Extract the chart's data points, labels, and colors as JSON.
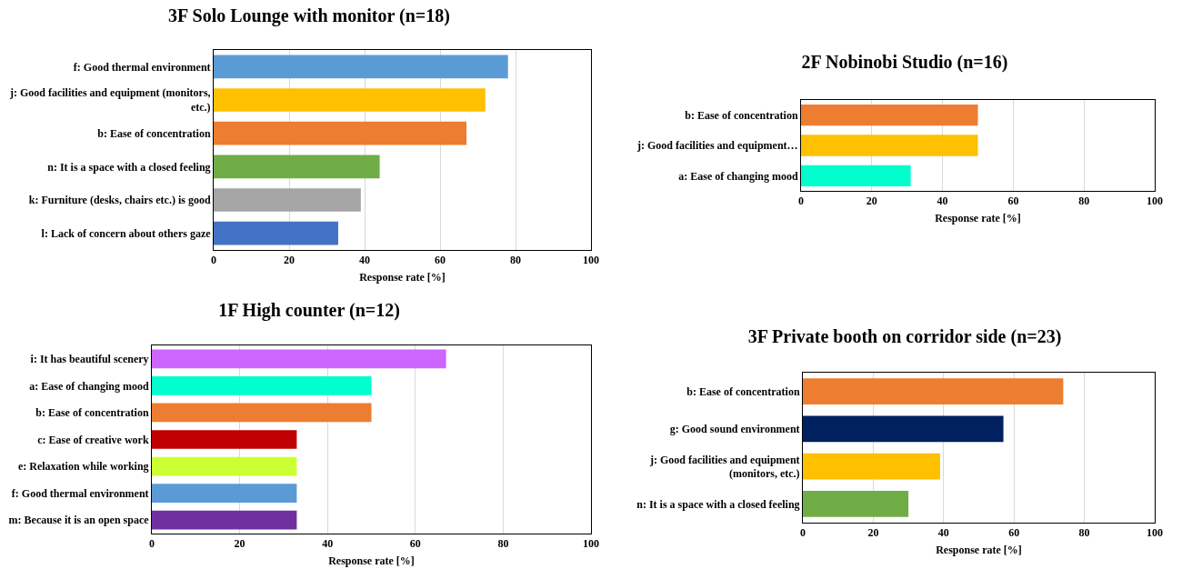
{
  "chart_data": [
    {
      "type": "bar",
      "orientation": "horizontal",
      "title": "3F Solo Lounge with monitor (n=18)",
      "xlabel": "Response rate [%]",
      "categories": [
        "f: Good thermal environment",
        "j: Good facilities and equipment (monitors, etc.)",
        "b: Ease of concentration",
        "n: It is a space with a closed feeling",
        "k: Furniture (desks, chairs etc.) is good",
        "l: Lack of concern about others gaze"
      ],
      "values": [
        78,
        72,
        67,
        44,
        39,
        33
      ],
      "colors": [
        "#5b9bd5",
        "#ffc000",
        "#ed7d31",
        "#70ad47",
        "#a5a5a5",
        "#4472c4"
      ],
      "xlim": [
        0,
        100
      ],
      "xticks": [
        0,
        20,
        40,
        60,
        80,
        100
      ],
      "grid": "x"
    },
    {
      "type": "bar",
      "orientation": "horizontal",
      "title": "2F Nobinobi Studio (n=16)",
      "xlabel": "Response rate [%]",
      "categories": [
        "b: Ease of concentration",
        "j: Good facilities and equipment…",
        "a: Ease of changing mood"
      ],
      "values": [
        50,
        50,
        31
      ],
      "colors": [
        "#ed7d31",
        "#ffc000",
        "#00ffcc"
      ],
      "xlim": [
        0,
        100
      ],
      "xticks": [
        0,
        20,
        40,
        60,
        80,
        100
      ],
      "grid": "x"
    },
    {
      "type": "bar",
      "orientation": "horizontal",
      "title": "1F High counter (n=12)",
      "xlabel": "Response rate [%]",
      "categories": [
        "i: It has beautiful scenery",
        "a: Ease of changing mood",
        "b: Ease of concentration",
        "c: Ease of creative work",
        "e: Relaxation while working",
        "f: Good thermal environment",
        "m: Because it is an open space"
      ],
      "values": [
        67,
        50,
        50,
        33,
        33,
        33,
        33
      ],
      "colors": [
        "#cc66ff",
        "#00ffcc",
        "#ed7d31",
        "#c00000",
        "#ccff33",
        "#5b9bd5",
        "#7030a0"
      ],
      "xlim": [
        0,
        100
      ],
      "xticks": [
        0,
        20,
        40,
        60,
        80,
        100
      ],
      "grid": "x"
    },
    {
      "type": "bar",
      "orientation": "horizontal",
      "title": "3F Private booth on corridor side (n=23)",
      "xlabel": "Response rate [%]",
      "categories": [
        "b: Ease of concentration",
        "g: Good sound environment",
        "j: Good facilities and equipment (monitors, etc.)",
        "n: It is a space with a closed feeling"
      ],
      "values": [
        74,
        57,
        39,
        30
      ],
      "colors": [
        "#ed7d31",
        "#002060",
        "#ffc000",
        "#70ad47"
      ],
      "xlim": [
        0,
        100
      ],
      "xticks": [
        0,
        20,
        40,
        60,
        80,
        100
      ],
      "grid": "x"
    }
  ]
}
